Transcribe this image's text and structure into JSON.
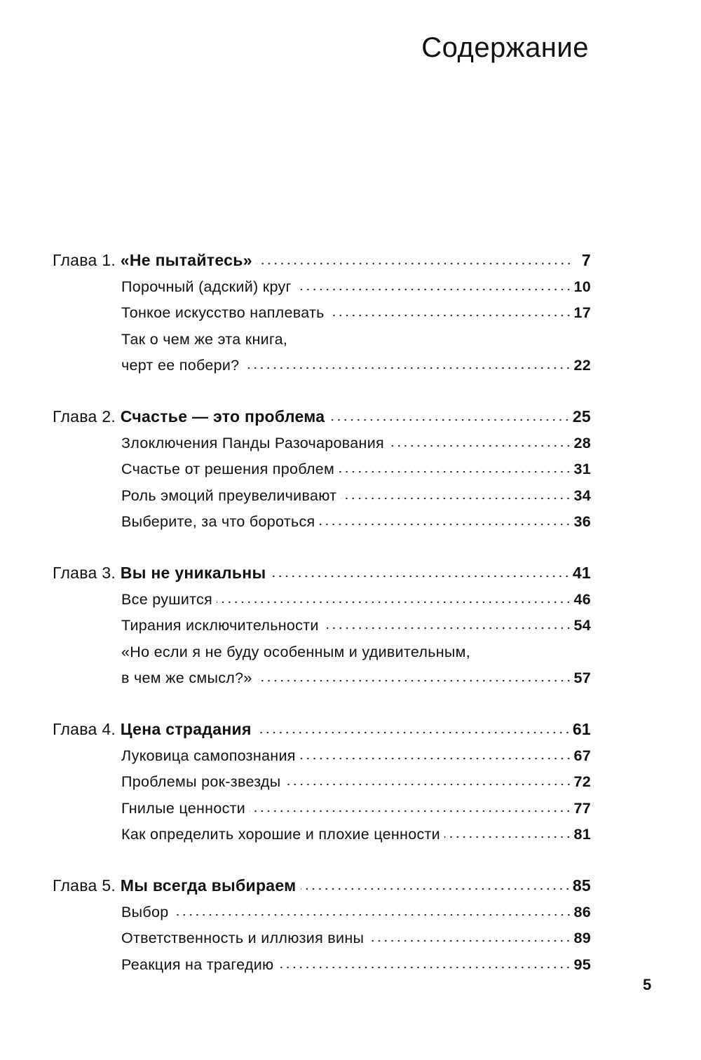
{
  "title": "Содержание",
  "folio": "5",
  "chapters": [
    {
      "prefix": "Глава 1. ",
      "name": "«Не пытайтесь»",
      "page": "7",
      "items": [
        {
          "lines": [
            "Порочный (адский) круг"
          ],
          "page": "10"
        },
        {
          "lines": [
            "Тонкое искусство наплевать"
          ],
          "page": "17"
        },
        {
          "lines": [
            "Так о чем же эта книга,",
            "черт ее побери?"
          ],
          "page": "22"
        }
      ]
    },
    {
      "prefix": "Глава 2. ",
      "name": "Счастье — это проблема",
      "page": "25",
      "items": [
        {
          "lines": [
            "Злоключения Панды Разочарования"
          ],
          "page": "28"
        },
        {
          "lines": [
            "Счастье от решения проблем"
          ],
          "page": "31"
        },
        {
          "lines": [
            "Роль эмоций преувеличивают"
          ],
          "page": "34"
        },
        {
          "lines": [
            "Выберите, за что бороться"
          ],
          "page": "36"
        }
      ]
    },
    {
      "prefix": "Глава 3. ",
      "name": "Вы не уникальны",
      "page": "41",
      "items": [
        {
          "lines": [
            "Все рушится"
          ],
          "page": "46"
        },
        {
          "lines": [
            "Тирания исключительности"
          ],
          "page": "54"
        },
        {
          "lines": [
            "«Но если я не буду особенным и удивительным,",
            "в чем же смысл?»"
          ],
          "page": "57"
        }
      ]
    },
    {
      "prefix": "Глава 4. ",
      "name": "Цена страдания",
      "page": "61",
      "items": [
        {
          "lines": [
            "Луковица самопознания"
          ],
          "page": "67"
        },
        {
          "lines": [
            "Проблемы рок-звезды"
          ],
          "page": "72"
        },
        {
          "lines": [
            "Гнилые ценности"
          ],
          "page": "77"
        },
        {
          "lines": [
            "Как определить хорошие и плохие ценности"
          ],
          "page": "81"
        }
      ]
    },
    {
      "prefix": "Глава 5. ",
      "name": "Мы всегда выбираем",
      "page": "85",
      "items": [
        {
          "lines": [
            "Выбор"
          ],
          "page": "86"
        },
        {
          "lines": [
            "Ответственность и иллюзия вины"
          ],
          "page": "89"
        },
        {
          "lines": [
            "Реакция на трагедию"
          ],
          "page": "95"
        }
      ]
    }
  ]
}
